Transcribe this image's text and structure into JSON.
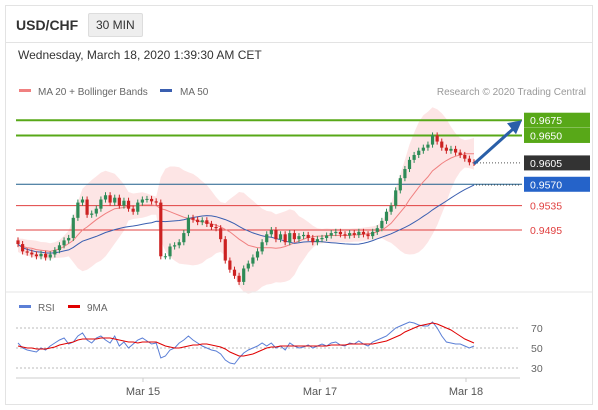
{
  "header": {
    "symbol": "USD/CHF",
    "timeframe": "30 MIN",
    "datetime": "Wednesday, March 18, 2020 1:39:30 AM CET"
  },
  "colors": {
    "bullish": "#2e8b57",
    "bearish": "#cc2222",
    "bollinger_fill": "#fde0e0",
    "ma20": "#f08080",
    "ma50": "#3a5fb0",
    "resistance": "#58a818",
    "support_line": "#1f5f8b",
    "level_red": "#e04040",
    "rsi": "#5b7fd6",
    "rsi_ma": "#e00000",
    "arrow": "#2a5fa8",
    "dark_label": "#333333",
    "blue_label": "#2563c9"
  },
  "legend": {
    "ma20_label": "MA 20 + Bollinger Bands",
    "ma50_label": "MA 50",
    "credit": "Research © 2020 Trading Central"
  },
  "rsi_legend": {
    "rsi_label": "RSI",
    "ma_label": "9MA"
  },
  "chart_data": [
    {
      "type": "candlestick",
      "title": "USD/CHF",
      "x_labels": [
        "Mar 15",
        "Mar 17",
        "Mar 18"
      ],
      "ylim": [
        0.94,
        0.9695
      ],
      "levels": [
        {
          "value": 0.9675,
          "label": "0.9675",
          "style": "resistance"
        },
        {
          "value": 0.965,
          "label": "0.9650",
          "style": "resistance"
        },
        {
          "value": 0.9605,
          "label": "0.9605",
          "style": "current"
        },
        {
          "value": 0.957,
          "label": "0.9570",
          "style": "pivot"
        },
        {
          "value": 0.9535,
          "label": "0.9535",
          "style": "support"
        },
        {
          "value": 0.9495,
          "label": "0.9495",
          "style": "support"
        }
      ],
      "close": [
        0.9472,
        0.946,
        0.9458,
        0.9455,
        0.9452,
        0.9456,
        0.945,
        0.9455,
        0.9462,
        0.947,
        0.9478,
        0.9482,
        0.9515,
        0.954,
        0.9545,
        0.952,
        0.9522,
        0.953,
        0.9545,
        0.9552,
        0.954,
        0.9548,
        0.9535,
        0.9543,
        0.953,
        0.9525,
        0.954,
        0.9545,
        0.9546,
        0.9542,
        0.954,
        0.9452,
        0.9452,
        0.9468,
        0.947,
        0.9475,
        0.949,
        0.9515,
        0.9512,
        0.9508,
        0.9511,
        0.9505,
        0.95,
        0.9498,
        0.948,
        0.9445,
        0.943,
        0.942,
        0.941,
        0.9432,
        0.944,
        0.945,
        0.946,
        0.9475,
        0.9488,
        0.9495,
        0.948,
        0.9488,
        0.9475,
        0.949,
        0.948,
        0.9485,
        0.9487,
        0.9482,
        0.9475,
        0.948,
        0.9482,
        0.9486,
        0.949,
        0.9492,
        0.9488,
        0.9486,
        0.949,
        0.9487,
        0.9492,
        0.9488,
        0.9485,
        0.9492,
        0.9498,
        0.951,
        0.9525,
        0.9535,
        0.956,
        0.958,
        0.9595,
        0.961,
        0.9618,
        0.9625,
        0.963,
        0.9635,
        0.965,
        0.964,
        0.963,
        0.9625,
        0.9628,
        0.9622,
        0.9618,
        0.9612,
        0.9606,
        0.9605
      ],
      "ma20": [
        0.947,
        0.9468,
        0.9466,
        0.9465,
        0.9463,
        0.9462,
        0.9461,
        0.946,
        0.9462,
        0.9464,
        0.9468,
        0.9473,
        0.9478,
        0.9487,
        0.9495,
        0.95,
        0.9506,
        0.9512,
        0.9517,
        0.9522,
        0.9526,
        0.953,
        0.9531,
        0.9532,
        0.9534,
        0.9534,
        0.9535,
        0.9536,
        0.9536,
        0.9536,
        0.9535,
        0.953,
        0.9528,
        0.9525,
        0.9522,
        0.9519,
        0.9516,
        0.9514,
        0.9512,
        0.951,
        0.9508,
        0.9508,
        0.9505,
        0.9503,
        0.95,
        0.9496,
        0.9492,
        0.9486,
        0.948,
        0.9475,
        0.947,
        0.9468,
        0.9466,
        0.9466,
        0.9466,
        0.9466,
        0.9465,
        0.9466,
        0.9468,
        0.9471,
        0.9474,
        0.9477,
        0.948,
        0.9483,
        0.9484,
        0.9485,
        0.9485,
        0.9486,
        0.9486,
        0.9486,
        0.9486,
        0.9486,
        0.9486,
        0.9487,
        0.9487,
        0.9488,
        0.9489,
        0.949,
        0.9492,
        0.9495,
        0.95,
        0.9506,
        0.9515,
        0.9524,
        0.9533,
        0.9545,
        0.9555,
        0.9565,
        0.9574,
        0.9582,
        0.9592,
        0.9598,
        0.9604,
        0.9609,
        0.9613,
        0.9616,
        0.9618,
        0.962,
        0.962,
        0.962
      ]
    },
    {
      "type": "line",
      "title": "RSI",
      "x_labels": [
        "Mar 15",
        "Mar 17",
        "Mar 18"
      ],
      "y_ticks": [
        70,
        50,
        30
      ],
      "ylim": [
        20,
        80
      ],
      "series": [
        {
          "name": "RSI",
          "values": [
            55,
            50,
            48,
            47,
            46,
            50,
            48,
            52,
            55,
            58,
            60,
            54,
            56,
            62,
            65,
            58,
            55,
            60,
            62,
            58,
            55,
            62,
            52,
            56,
            50,
            54,
            58,
            60,
            57,
            54,
            55,
            40,
            42,
            48,
            50,
            55,
            58,
            62,
            58,
            55,
            52,
            50,
            48,
            47,
            44,
            38,
            35,
            34,
            40,
            45,
            48,
            50,
            52,
            55,
            52,
            55,
            50,
            52,
            48,
            55,
            52,
            50,
            51,
            53,
            50,
            52,
            54,
            52,
            55,
            56,
            53,
            52,
            55,
            54,
            57,
            54,
            52,
            56,
            58,
            60,
            62,
            66,
            70,
            72,
            74,
            76,
            75,
            73,
            72,
            72,
            76,
            70,
            62,
            56,
            55,
            54,
            54,
            52,
            50,
            52
          ]
        },
        {
          "name": "9MA",
          "values": [
            52,
            51,
            50,
            50,
            49,
            49,
            49,
            50,
            51,
            53,
            54,
            55,
            56,
            58,
            59,
            59,
            59,
            59,
            60,
            60,
            60,
            59,
            58,
            57,
            56,
            56,
            55,
            56,
            56,
            56,
            56,
            54,
            52,
            51,
            50,
            50,
            51,
            52,
            53,
            53,
            54,
            54,
            53,
            52,
            51,
            49,
            46,
            44,
            42,
            42,
            43,
            44,
            46,
            48,
            50,
            51,
            51,
            52,
            52,
            52,
            52,
            52,
            52,
            52,
            52,
            52,
            52,
            52,
            53,
            53,
            53,
            53,
            54,
            54,
            54,
            54,
            54,
            54,
            55,
            56,
            57,
            59,
            61,
            63,
            66,
            68,
            70,
            72,
            73,
            74,
            75,
            74,
            72,
            70,
            68,
            65,
            62,
            59,
            57,
            55
          ]
        }
      ]
    }
  ]
}
